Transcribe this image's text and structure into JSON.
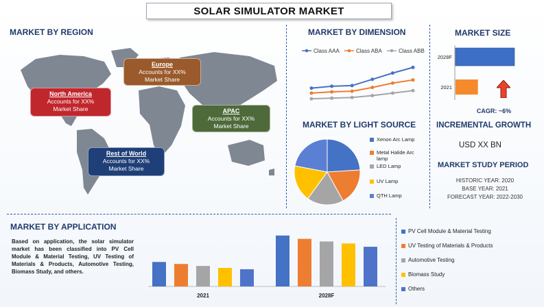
{
  "title": "SOLAR SIMULATOR MARKET",
  "region": {
    "heading": "MARKET BY REGION",
    "callouts": [
      {
        "name": "North America",
        "line1": "Accounts for XX%",
        "line2": "Market Share",
        "color": "#c0272d"
      },
      {
        "name": "Europe",
        "line1": "Accounts for XX%",
        "line2": "Market Share",
        "color": "#9a5a2b"
      },
      {
        "name": "APAC",
        "line1": "Accounts for XX%",
        "line2": "Market Share",
        "color": "#4f6a3a"
      },
      {
        "name": "Rest of World",
        "line1": "Accounts for XX%",
        "line2": "Market Share",
        "color": "#1f3f78"
      }
    ]
  },
  "dimension": {
    "heading": "MARKET BY DIMENSION"
  },
  "size": {
    "heading": "MARKET SIZE",
    "cagr": "CAGR:  ~6%"
  },
  "light": {
    "heading": "MARKET BY LIGHT SOURCE"
  },
  "incremental": {
    "heading": "INCREMENTAL GROWTH",
    "value": "USD XX BN"
  },
  "period": {
    "heading": "MARKET STUDY PERIOD",
    "historic": "HISTORIC YEAR: 2020",
    "base": "BASE YEAR: 2021",
    "forecast": "FORECAST YEAR: 2022-2030"
  },
  "application": {
    "heading": "MARKET BY APPLICATION",
    "text": "Based on application, the solar simulator market has been classified into PV Cell Module & Material Testing, UV Testing of Materials & Products, Automotive Testing, Biomass Study, and others."
  },
  "chart_data": [
    {
      "type": "line",
      "x": [
        1,
        2,
        3,
        4,
        5,
        6
      ],
      "series": [
        {
          "name": "Class AAA",
          "values": [
            3.0,
            3.3,
            3.4,
            4.4,
            5.4,
            6.3
          ],
          "color": "#4472c4"
        },
        {
          "name": "Class ABA",
          "values": [
            2.2,
            2.4,
            2.5,
            3.1,
            3.8,
            4.3
          ],
          "color": "#ed7d31"
        },
        {
          "name": "Class ABB",
          "values": [
            1.3,
            1.4,
            1.5,
            1.8,
            2.2,
            2.6
          ],
          "color": "#a5a5a5"
        }
      ],
      "legend": "top"
    },
    {
      "type": "bar",
      "orientation": "horizontal",
      "categories": [
        "2028F",
        "2021"
      ],
      "values": [
        100,
        38
      ],
      "colors": [
        "#3e6fc6",
        "#f58a2d"
      ]
    },
    {
      "type": "pie",
      "labels": [
        "Xenon Arc Lamp",
        "Metal Halide Arc lamp",
        "LED Lamp",
        "UV Lamp",
        "QTH Lamp"
      ],
      "values": [
        24,
        18,
        18,
        18,
        22
      ],
      "colors": [
        "#4472c4",
        "#ed7d31",
        "#a5a5a5",
        "#ffc000",
        "#5b7fd3"
      ],
      "legend": "right"
    },
    {
      "type": "bar",
      "categories": [
        "2021",
        "2028F"
      ],
      "series": [
        {
          "name": "PV Cell Module & Material Testing",
          "values": [
            37,
            77
          ],
          "color": "#4472c4"
        },
        {
          "name": "UV Testing of Materials & Products",
          "values": [
            34,
            72
          ],
          "color": "#ed7d31"
        },
        {
          "name": "Automotive Testing",
          "values": [
            31,
            68
          ],
          "color": "#a5a5a5"
        },
        {
          "name": "Biomass Study",
          "values": [
            28,
            65
          ],
          "color": "#ffc000"
        },
        {
          "name": "Others",
          "values": [
            26,
            60
          ],
          "color": "#4e73c9"
        }
      ],
      "ylim": [
        0,
        85
      ],
      "legend": "right"
    }
  ]
}
